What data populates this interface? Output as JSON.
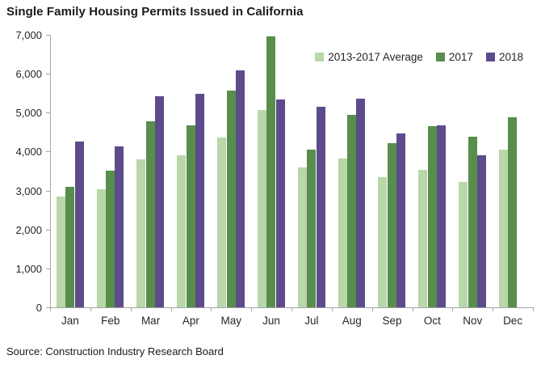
{
  "title": "Single Family Housing Permits Issued in California",
  "source": "Source: Construction Industry Research Board",
  "colors": {
    "axis": "#a6a6a6",
    "text": "#262626",
    "background": "#ffffff"
  },
  "chart_data": {
    "type": "bar",
    "title": "Single Family Housing Permits Issued in California",
    "xlabel": "",
    "ylabel": "",
    "categories": [
      "Jan",
      "Feb",
      "Mar",
      "Apr",
      "May",
      "Jun",
      "Jul",
      "Aug",
      "Sep",
      "Oct",
      "Nov",
      "Dec"
    ],
    "series": [
      {
        "name": "2013-2017 Average",
        "color": "#b9d7a9",
        "values": [
          2850,
          3030,
          3800,
          3900,
          4370,
          5060,
          3600,
          3820,
          3350,
          3530,
          3220,
          4060
        ]
      },
      {
        "name": "2017",
        "color": "#578e4c",
        "values": [
          3100,
          3520,
          4780,
          4680,
          5560,
          6950,
          4050,
          4950,
          4210,
          4660,
          4390,
          4890
        ]
      },
      {
        "name": "2018",
        "color": "#5d4b8c",
        "values": [
          4250,
          4130,
          5420,
          5480,
          6080,
          5330,
          5160,
          5360,
          4470,
          4680,
          3900,
          null
        ]
      }
    ],
    "ylim": [
      0,
      7000
    ],
    "y_tick_step": 1000,
    "y_tick_labels": [
      "0",
      "1,000",
      "2,000",
      "3,000",
      "4,000",
      "5,000",
      "6,000",
      "7,000"
    ],
    "grid": false,
    "legend_position": "top-right"
  }
}
